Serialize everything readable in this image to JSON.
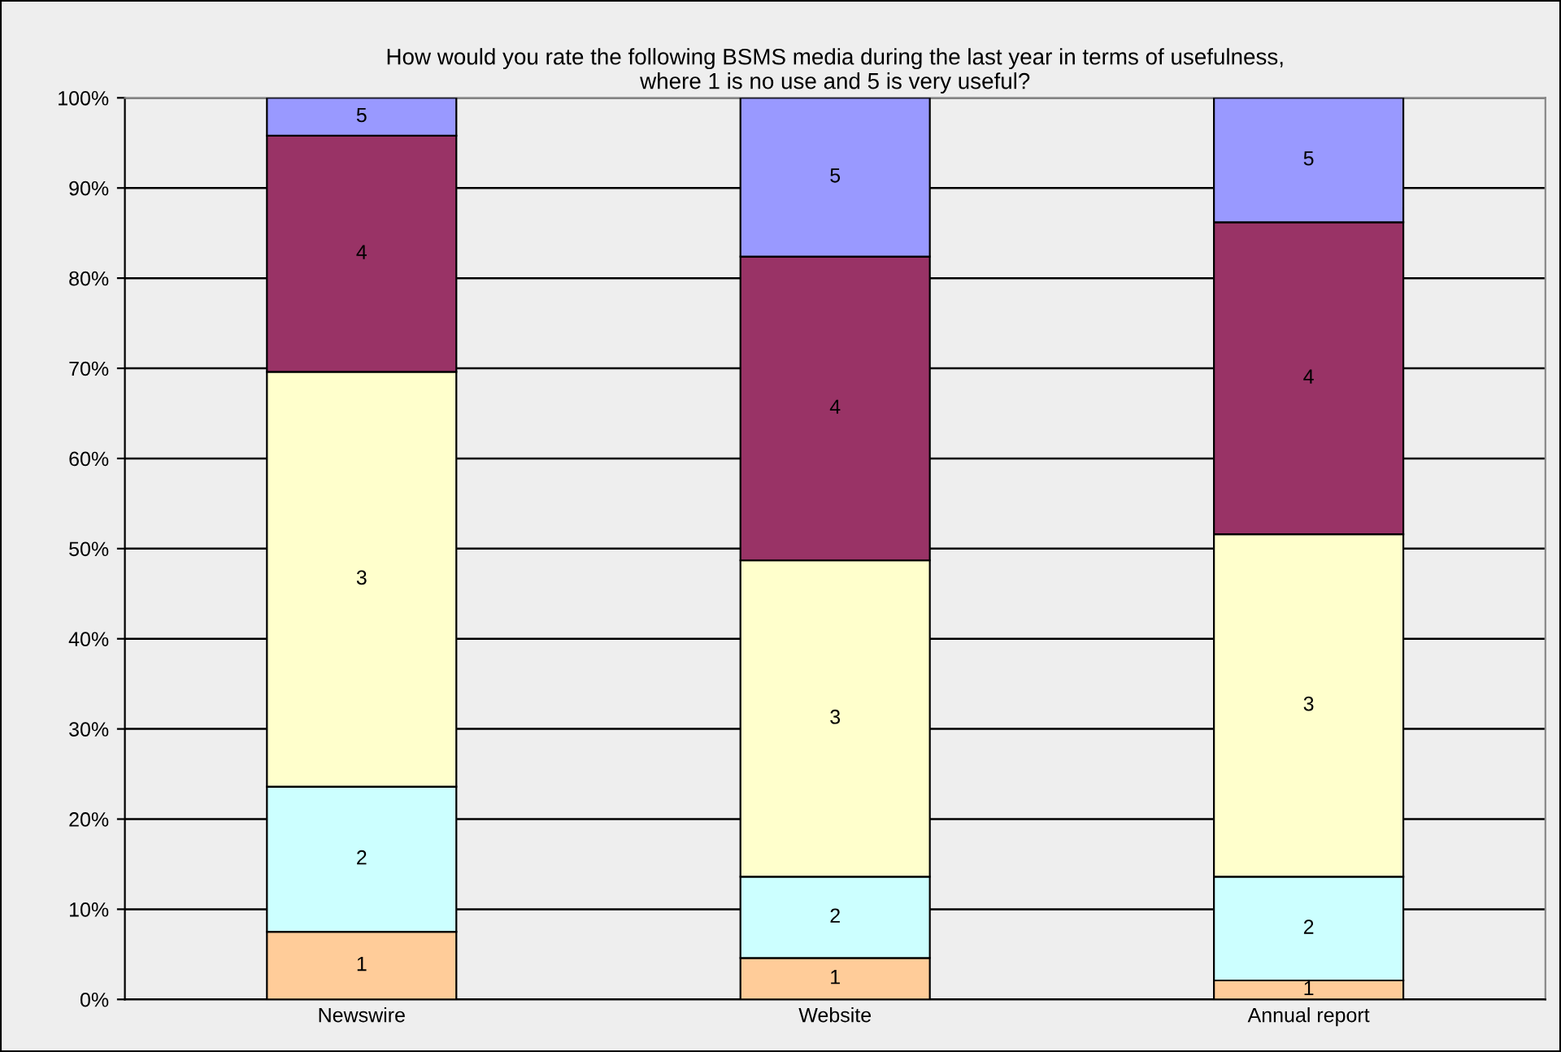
{
  "chart_data": {
    "type": "bar",
    "stacked": true,
    "title": "How would you rate the following BSMS media during the last year in terms of usefulness,\nwhere 1 is no use and 5 is very useful?",
    "categories": [
      "Newswire",
      "Website",
      "Annual report"
    ],
    "series": [
      {
        "name": "1",
        "color": "#ffcc99",
        "values": [
          7.5,
          4.6,
          2.1
        ]
      },
      {
        "name": "2",
        "color": "#ccffff",
        "values": [
          16.1,
          9.0,
          11.5
        ]
      },
      {
        "name": "3",
        "color": "#ffffcc",
        "values": [
          46.0,
          35.1,
          38.0
        ]
      },
      {
        "name": "4",
        "color": "#993366",
        "values": [
          26.2,
          33.7,
          34.6
        ]
      },
      {
        "name": "5",
        "color": "#9999ff",
        "values": [
          4.2,
          17.6,
          13.8
        ]
      }
    ],
    "ylim": [
      0,
      100
    ],
    "yticks": [
      {
        "value": 0,
        "label": "0%"
      },
      {
        "value": 10,
        "label": "10%"
      },
      {
        "value": 20,
        "label": "20%"
      },
      {
        "value": 30,
        "label": "30%"
      },
      {
        "value": 40,
        "label": "40%"
      },
      {
        "value": 50,
        "label": "50%"
      },
      {
        "value": 60,
        "label": "60%"
      },
      {
        "value": 70,
        "label": "70%"
      },
      {
        "value": 80,
        "label": "80%"
      },
      {
        "value": 90,
        "label": "90%"
      },
      {
        "value": 100,
        "label": "100%"
      }
    ],
    "grid": "y",
    "legend": false
  }
}
